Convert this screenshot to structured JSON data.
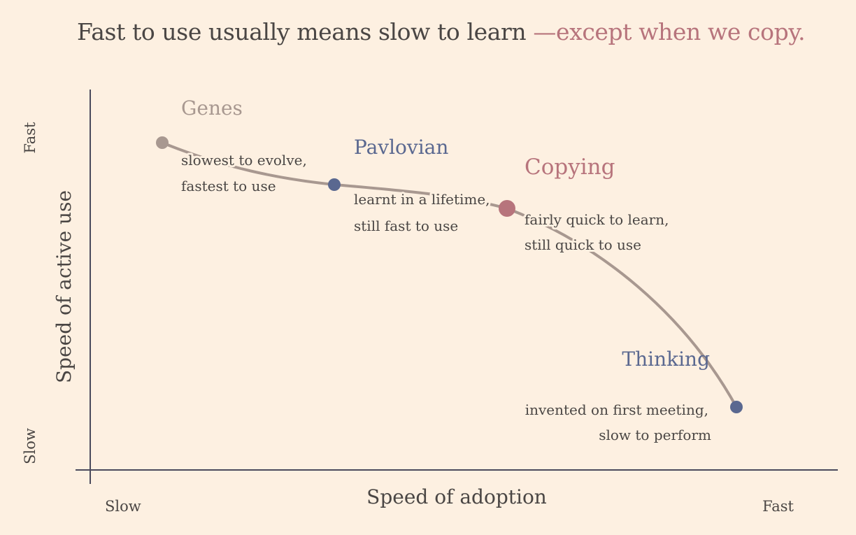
{
  "title": {
    "main": "Fast to use usually means slow to learn ",
    "highlight": "—except when we copy."
  },
  "axes": {
    "x_label": "Speed of adoption",
    "y_label": "Speed of active use",
    "x_min_label": "Slow",
    "x_max_label": "Fast",
    "y_min_label": "Slow",
    "y_max_label": "Fast"
  },
  "colors": {
    "background": "#fdf0e1",
    "curve": "#a89890",
    "axis": "#4a4a5c",
    "genes": "#a89890",
    "pavlovian": "#5a6890",
    "copying": "#b7747c",
    "thinking": "#5a6890",
    "text": "#4a4644"
  },
  "points": [
    {
      "id": "genes",
      "name": "Genes",
      "line1": "slowest to evolve,",
      "line2": "fastest to use"
    },
    {
      "id": "pavlovian",
      "name": "Pavlovian",
      "line1": "learnt in a lifetime,",
      "line2": "still fast to use"
    },
    {
      "id": "copying",
      "name": "Copying",
      "line1": "fairly quick to learn,",
      "line2": "still quick to use"
    },
    {
      "id": "thinking",
      "name": "Thinking",
      "line1": "invented on first meeting,",
      "line2": "slow to perform"
    }
  ]
}
